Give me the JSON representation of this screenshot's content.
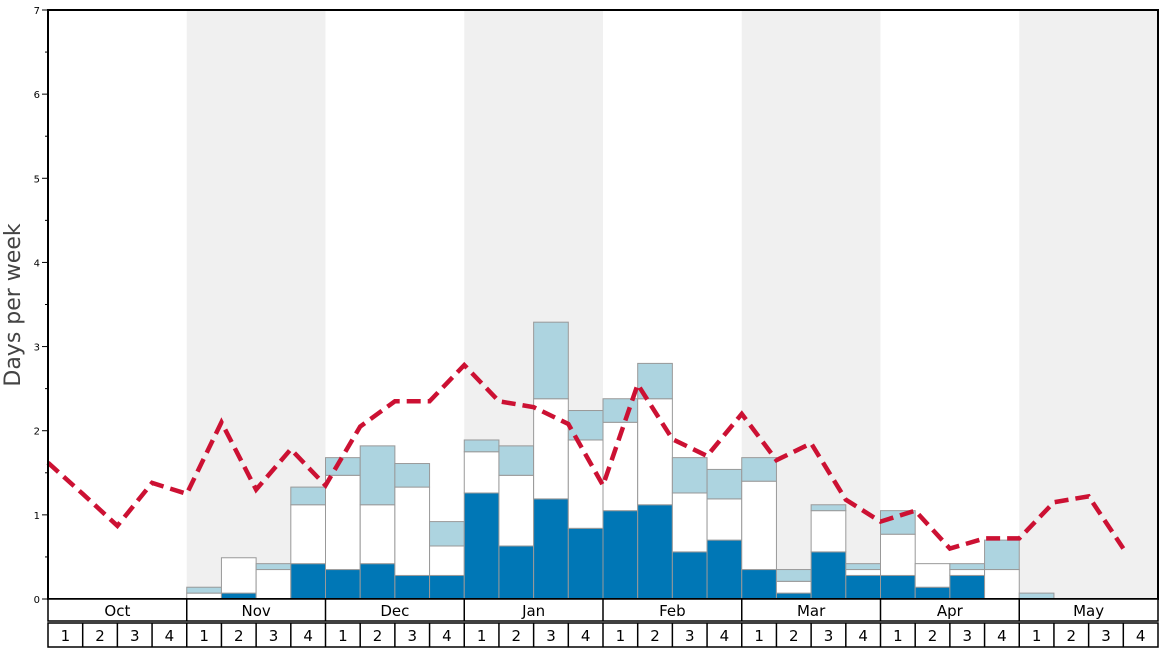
{
  "chart_data": {
    "type": "bar",
    "ylabel": "Days per week",
    "ylim": [
      0,
      7
    ],
    "yticks": [
      "0",
      "1",
      "2",
      "3",
      "4",
      "5",
      "6",
      "7"
    ],
    "months": [
      "Oct",
      "Nov",
      "Dec",
      "Jan",
      "Feb",
      "Mar",
      "Apr",
      "May"
    ],
    "weeks": [
      "1",
      "2",
      "3",
      "4"
    ],
    "colors": {
      "dark": "#0077b6",
      "mid": "#ffffff",
      "light": "#add4e0",
      "line": "#cc1133",
      "band": "#f0f0f0",
      "border": "#999999"
    },
    "series": [
      {
        "values": [
          0,
          0,
          0,
          0,
          0,
          0.07,
          0,
          0.42,
          0.35,
          0.42,
          0.28,
          0.28,
          1.26,
          0.63,
          1.19,
          0.84,
          1.05,
          1.12,
          0.56,
          0.7,
          0.35,
          0.07,
          0.56,
          0.28,
          0.28,
          0.14,
          0.28,
          0,
          0,
          0,
          0,
          0
        ]
      },
      {
        "values": [
          0,
          0,
          0,
          0,
          0.07,
          0.42,
          0.35,
          0.7,
          1.12,
          0.7,
          1.05,
          0.35,
          0.49,
          0.84,
          1.19,
          1.05,
          1.05,
          1.26,
          0.7,
          0.49,
          1.05,
          0.14,
          0.49,
          0.07,
          0.49,
          0.28,
          0.07,
          0.35,
          0,
          0,
          0,
          0
        ]
      },
      {
        "values": [
          0,
          0,
          0,
          0,
          0.07,
          0,
          0.07,
          0.21,
          0.21,
          0.7,
          0.28,
          0.29,
          0.14,
          0.35,
          0.91,
          0.35,
          0.28,
          0.42,
          0.42,
          0.35,
          0.28,
          0.14,
          0.07,
          0.07,
          0.28,
          0,
          0.07,
          0.35,
          0.07,
          0,
          0,
          0
        ]
      }
    ],
    "line": {
      "values": [
        1.62,
        1.25,
        0.87,
        1.38,
        1.25,
        2.1,
        1.3,
        1.78,
        1.35,
        2.05,
        2.35,
        2.35,
        2.78,
        2.35,
        2.28,
        2.08,
        1.35,
        2.55,
        1.9,
        1.7,
        2.2,
        1.65,
        1.85,
        1.18,
        0.92,
        1.05,
        0.6,
        0.72,
        0.72,
        1.15,
        1.22,
        0.6
      ]
    }
  }
}
